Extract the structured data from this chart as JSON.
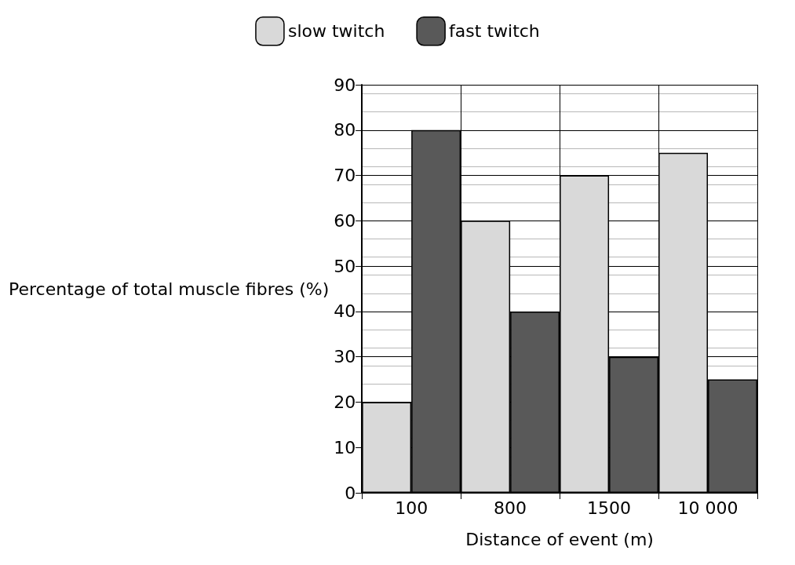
{
  "chart_data": {
    "type": "bar",
    "xlabel": "Distance of event (m)",
    "ylabel": "Percentage of total muscle fibres (%)",
    "categories": [
      "100",
      "800",
      "1500",
      "10 000"
    ],
    "series": [
      {
        "name": "slow twitch",
        "color": "#d9d9d9",
        "values": [
          20,
          60,
          70,
          75
        ]
      },
      {
        "name": "fast twitch",
        "color": "#595959",
        "values": [
          80,
          40,
          30,
          25
        ]
      }
    ],
    "ylim": [
      0,
      90
    ],
    "yticks": [
      0,
      10,
      20,
      30,
      40,
      50,
      60,
      70,
      80,
      90
    ],
    "grid": true,
    "legend": "top"
  }
}
